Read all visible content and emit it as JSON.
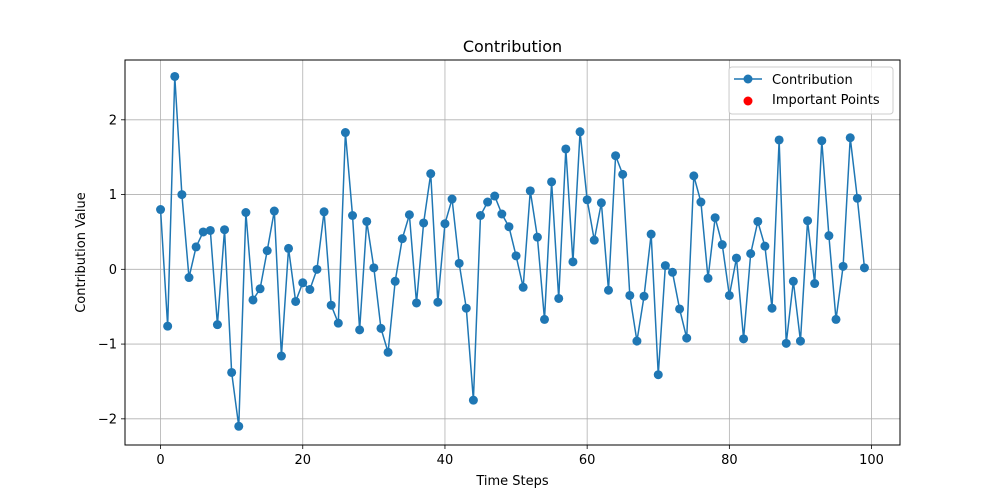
{
  "chart_data": {
    "type": "line",
    "title": "Contribution",
    "xlabel": "Time Steps",
    "ylabel": "Contribution Value",
    "xlim": [
      -5,
      104
    ],
    "ylim": [
      -2.35,
      2.8
    ],
    "grid": true,
    "legend_position": "top-right",
    "x_ticks": [
      0,
      20,
      40,
      60,
      80,
      100
    ],
    "x_tick_labels": [
      "0",
      "20",
      "40",
      "60",
      "80",
      "100"
    ],
    "y_ticks": [
      -2,
      -1,
      0,
      1,
      2
    ],
    "y_tick_labels": [
      "−2",
      "−1",
      "0",
      "1",
      "2"
    ],
    "series": [
      {
        "name": "Contribution",
        "color": "#1f77b4",
        "marker": "circle",
        "x": [
          0,
          1,
          2,
          3,
          4,
          5,
          6,
          7,
          8,
          9,
          10,
          11,
          12,
          13,
          14,
          15,
          16,
          17,
          18,
          19,
          20,
          21,
          22,
          23,
          24,
          25,
          26,
          27,
          28,
          29,
          30,
          31,
          32,
          33,
          34,
          35,
          36,
          37,
          38,
          39,
          40,
          41,
          42,
          43,
          44,
          45,
          46,
          47,
          48,
          49,
          50,
          51,
          52,
          53,
          54,
          55,
          56,
          57,
          58,
          59,
          60,
          61,
          62,
          63,
          64,
          65,
          66,
          67,
          68,
          69,
          70,
          71,
          72,
          73,
          74,
          75,
          76,
          77,
          78,
          79,
          80,
          81,
          82,
          83,
          84,
          85,
          86,
          87,
          88,
          89,
          90,
          91,
          92,
          93,
          94,
          95,
          96,
          97,
          98,
          99
        ],
        "values": [
          0.8,
          -0.76,
          2.58,
          1.0,
          -0.11,
          0.3,
          0.5,
          0.52,
          -0.74,
          0.53,
          -1.38,
          -2.1,
          0.76,
          -0.41,
          -0.26,
          0.25,
          0.78,
          -1.16,
          0.28,
          -0.43,
          -0.18,
          -0.27,
          0.0,
          0.77,
          -0.48,
          -0.72,
          1.83,
          0.72,
          -0.81,
          0.64,
          0.02,
          -0.79,
          -1.11,
          -0.16,
          0.41,
          0.73,
          -0.45,
          0.62,
          1.28,
          -0.44,
          0.61,
          0.94,
          0.08,
          -0.52,
          -1.75,
          0.72,
          0.9,
          0.98,
          0.74,
          0.57,
          0.18,
          -0.24,
          1.05,
          0.43,
          -0.67,
          1.17,
          -0.39,
          1.61,
          0.1,
          1.84,
          0.93,
          0.39,
          0.89,
          -0.28,
          1.52,
          1.27,
          -0.35,
          -0.96,
          -0.36,
          0.47,
          -1.41,
          0.05,
          -0.04,
          -0.53,
          -0.92,
          1.25,
          0.9,
          -0.12,
          0.69,
          0.33,
          -0.35,
          0.15,
          -0.93,
          0.21,
          0.64,
          0.31,
          -0.52,
          1.73,
          -0.99,
          -0.16,
          -0.96,
          0.65,
          -0.19,
          1.72,
          0.45,
          -0.67,
          0.04,
          1.76,
          0.95,
          0.02
        ]
      },
      {
        "name": "Important Points",
        "color": "#ff0000",
        "marker": "circle",
        "x": [],
        "values": []
      }
    ]
  }
}
